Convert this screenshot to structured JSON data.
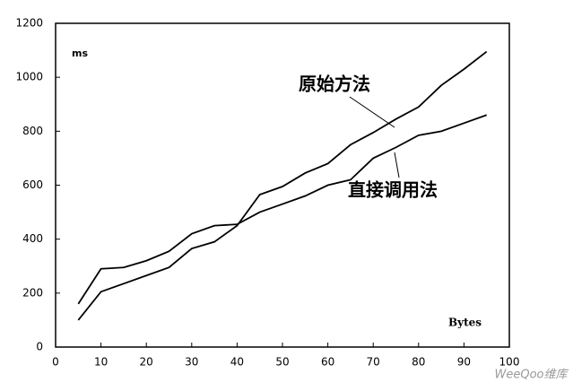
{
  "chart_data": {
    "type": "line",
    "y_unit_label": "ms",
    "x_unit_label": "Bytes",
    "x": [
      5,
      10,
      15,
      20,
      25,
      30,
      35,
      40,
      45,
      50,
      55,
      60,
      65,
      70,
      75,
      80,
      85,
      90,
      95
    ],
    "series": [
      {
        "name": "原始方法",
        "color": "#000000",
        "values": [
          100,
          205,
          235,
          265,
          295,
          365,
          390,
          450,
          565,
          595,
          645,
          680,
          750,
          795,
          845,
          890,
          970,
          1030,
          1095
        ]
      },
      {
        "name": "直接调用法",
        "color": "#000000",
        "values": [
          160,
          290,
          295,
          320,
          355,
          420,
          450,
          455,
          500,
          530,
          560,
          600,
          620,
          700,
          740,
          785,
          800,
          830,
          860
        ]
      }
    ],
    "xlim": [
      0,
      100
    ],
    "xticks": [
      0,
      10,
      20,
      30,
      40,
      50,
      60,
      70,
      80,
      90,
      100
    ],
    "ylim": [
      0,
      1200
    ],
    "yticks": [
      0,
      200,
      400,
      600,
      800,
      1000,
      1200
    ],
    "grid": false,
    "watermark": "WeeQoo维库"
  }
}
